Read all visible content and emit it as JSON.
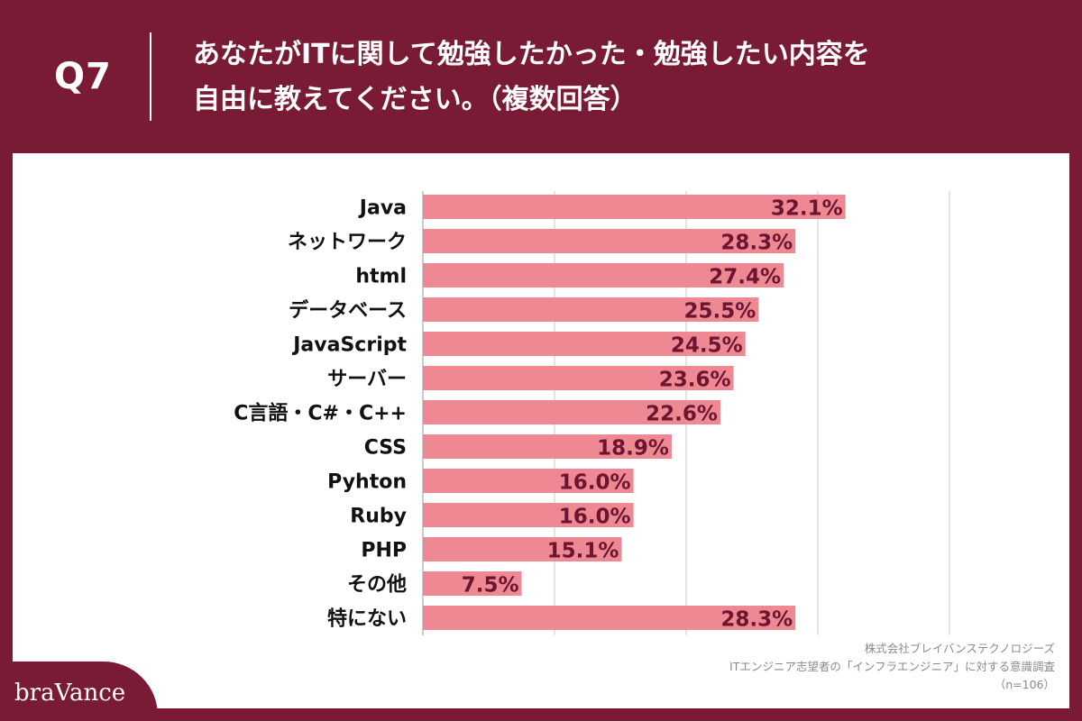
{
  "header": {
    "q_label": "Q7",
    "title_line1": "あなたがITに関して勉強したかった・勉強したい内容を",
    "title_line2": "自由に教えてください。（複数回答）"
  },
  "chart_data": {
    "type": "bar",
    "orientation": "horizontal",
    "categories": [
      "Java",
      "ネットワーク",
      "html",
      "データベース",
      "JavaScript",
      "サーバー",
      "C言語・C#・C++",
      "CSS",
      "Pyhton",
      "Ruby",
      "PHP",
      "その他",
      "特にない"
    ],
    "values": [
      32.1,
      28.3,
      27.4,
      25.5,
      24.5,
      23.6,
      22.6,
      18.9,
      16.0,
      16.0,
      15.1,
      7.5,
      28.3
    ],
    "value_labels": [
      "32.1%",
      "28.3%",
      "27.4%",
      "25.5%",
      "24.5%",
      "23.6%",
      "22.6%",
      "18.9%",
      "16.0%",
      "16.0%",
      "15.1%",
      "7.5%",
      "28.3%"
    ],
    "xlim": [
      0,
      40
    ],
    "gridlines": [
      10,
      20,
      30,
      40
    ],
    "grid": true,
    "bar_color": "#ee8893",
    "label_color": "#6b1530"
  },
  "footer": {
    "company": "株式会社ブレイバンステクノロジーズ",
    "survey": "ITエンジニア志望者の「インフラエンジニア」に対する意識調査",
    "sample": "（n=106）"
  },
  "logo": {
    "text": "braVance"
  },
  "colors": {
    "header_bg": "#7a1b36",
    "panel_bg": "#ffffff"
  }
}
